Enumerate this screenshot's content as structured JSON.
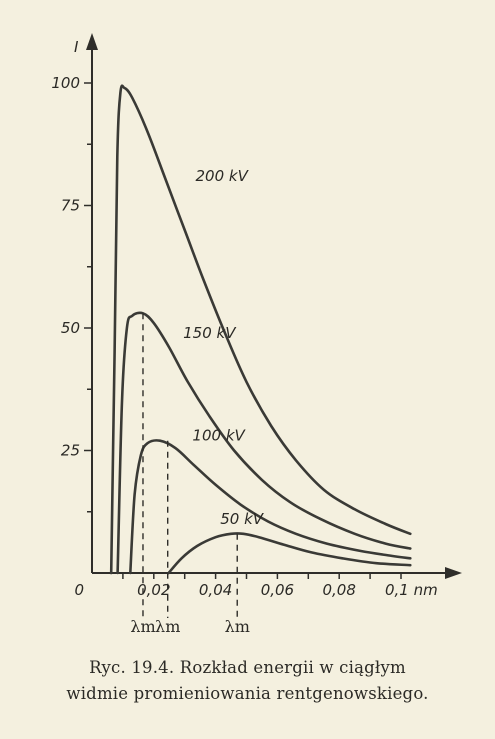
{
  "chart_data": {
    "type": "line",
    "ylabel": "I",
    "xunit": "nm",
    "xlim": [
      0,
      0.1
    ],
    "ylim": [
      0,
      100
    ],
    "x_ticks": [
      {
        "value": 0,
        "label": "0"
      },
      {
        "value": 0.02,
        "label": "0,02"
      },
      {
        "value": 0.04,
        "label": "0,04"
      },
      {
        "value": 0.06,
        "label": "0,06"
      },
      {
        "value": 0.08,
        "label": "0,08"
      },
      {
        "value": 0.1,
        "label": "0,1 nm"
      }
    ],
    "y_ticks": [
      {
        "value": 25,
        "label": "25"
      },
      {
        "value": 50,
        "label": "50"
      },
      {
        "value": 75,
        "label": "75"
      },
      {
        "value": 100,
        "label": "100"
      }
    ],
    "series": [
      {
        "name": "200 kV",
        "color": "#3a3a36",
        "points": [
          [
            0.0062,
            0
          ],
          [
            0.0073,
            45
          ],
          [
            0.0082,
            85
          ],
          [
            0.0092,
            98
          ],
          [
            0.0105,
            99
          ],
          [
            0.013,
            97
          ],
          [
            0.018,
            90
          ],
          [
            0.024,
            80
          ],
          [
            0.03,
            70
          ],
          [
            0.036,
            60
          ],
          [
            0.043,
            49
          ],
          [
            0.05,
            39
          ],
          [
            0.058,
            30
          ],
          [
            0.066,
            23
          ],
          [
            0.075,
            17
          ],
          [
            0.085,
            13
          ],
          [
            0.095,
            10
          ],
          [
            0.103,
            8
          ]
        ]
      },
      {
        "name": "150 kV",
        "color": "#3a3a36",
        "points": [
          [
            0.0083,
            0
          ],
          [
            0.0097,
            35
          ],
          [
            0.0113,
            50
          ],
          [
            0.013,
            52.5
          ],
          [
            0.0165,
            53
          ],
          [
            0.02,
            51
          ],
          [
            0.025,
            46
          ],
          [
            0.031,
            39
          ],
          [
            0.038,
            32
          ],
          [
            0.046,
            25
          ],
          [
            0.055,
            19
          ],
          [
            0.064,
            14.5
          ],
          [
            0.074,
            11
          ],
          [
            0.085,
            8
          ],
          [
            0.095,
            6
          ],
          [
            0.103,
            5
          ]
        ]
      },
      {
        "name": "100 kV",
        "color": "#3a3a36",
        "points": [
          [
            0.0124,
            0
          ],
          [
            0.0138,
            16
          ],
          [
            0.0158,
            24
          ],
          [
            0.018,
            26.5
          ],
          [
            0.022,
            27
          ],
          [
            0.027,
            25.5
          ],
          [
            0.033,
            22
          ],
          [
            0.04,
            18
          ],
          [
            0.048,
            14
          ],
          [
            0.057,
            10.5
          ],
          [
            0.066,
            8
          ],
          [
            0.076,
            6
          ],
          [
            0.087,
            4.5
          ],
          [
            0.097,
            3.5
          ],
          [
            0.103,
            3
          ]
        ]
      },
      {
        "name": "50 kV",
        "color": "#3a3a36",
        "points": [
          [
            0.0248,
            0
          ],
          [
            0.029,
            3
          ],
          [
            0.034,
            5.5
          ],
          [
            0.04,
            7.3
          ],
          [
            0.045,
            8
          ],
          [
            0.049,
            8
          ],
          [
            0.054,
            7.3
          ],
          [
            0.062,
            5.8
          ],
          [
            0.071,
            4.2
          ],
          [
            0.081,
            3
          ],
          [
            0.092,
            2
          ],
          [
            0.103,
            1.6
          ]
        ]
      }
    ],
    "series_labels": [
      {
        "text": "200 kV",
        "x": 0.0335,
        "y": 80
      },
      {
        "text": "150 kV",
        "x": 0.0295,
        "y": 48
      },
      {
        "text": "100 kV",
        "x": 0.0325,
        "y": 27
      },
      {
        "text": "50 kV",
        "x": 0.0415,
        "y": 10
      }
    ],
    "lambda_m_markers": [
      {
        "x": 0.0165,
        "y": 53,
        "label": "λm"
      },
      {
        "x": 0.0245,
        "y": 27,
        "label": "λm"
      },
      {
        "x": 0.047,
        "y": 8,
        "label": "λm"
      }
    ],
    "grid": false
  },
  "caption": {
    "line1": "Ryc. 19.4. Rozkład energii w ciągłym",
    "line2": "widmie promieniowania rentgenowskiego."
  }
}
